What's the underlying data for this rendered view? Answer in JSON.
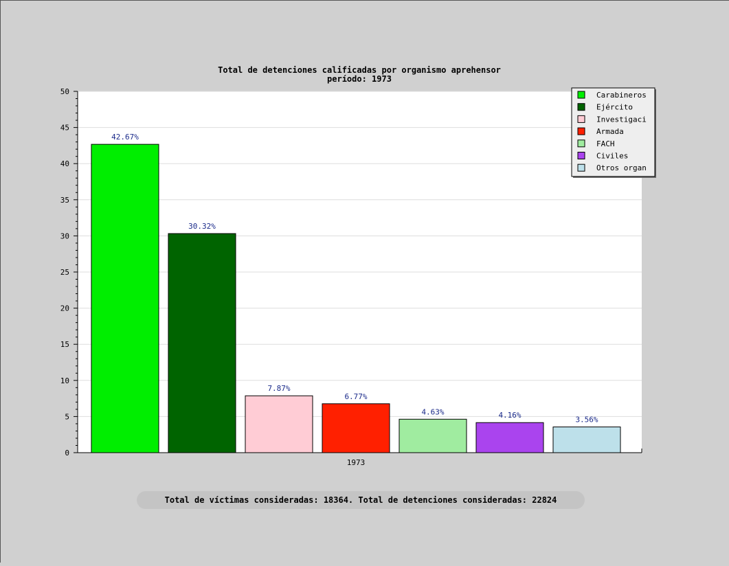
{
  "chart_data": {
    "type": "bar",
    "title": "Total de detenciones calificadas por organismo aprehensor",
    "subtitle": "período: 1973",
    "categories": [
      "1973"
    ],
    "series": [
      {
        "name": "Carabineros",
        "value": 42.67,
        "label": "42.67%",
        "color": "#00ee00"
      },
      {
        "name": "Ejército",
        "value": 30.32,
        "label": "30.32%",
        "color": "#006400"
      },
      {
        "name": "Investigaci",
        "value": 7.87,
        "label": "7.87%",
        "color": "#ffccd5"
      },
      {
        "name": "Armada",
        "value": 6.77,
        "label": "6.77%",
        "color": "#ff2000"
      },
      {
        "name": "FACH",
        "value": 4.63,
        "label": "4.63%",
        "color": "#a0eca0"
      },
      {
        "name": "Civiles",
        "value": 4.16,
        "label": "4.16%",
        "color": "#aa44ee"
      },
      {
        "name": "Otros organ",
        "value": 3.56,
        "label": "3.56%",
        "color": "#bde0ea"
      }
    ],
    "ylim": [
      0,
      50
    ],
    "yticks": [
      0,
      5,
      10,
      15,
      20,
      25,
      30,
      35,
      40,
      45,
      50
    ],
    "grid": true,
    "legend_position": "top-right"
  },
  "footer": "Total de víctimas consideradas: 18364. Total de detenciones consideradas: 22824"
}
